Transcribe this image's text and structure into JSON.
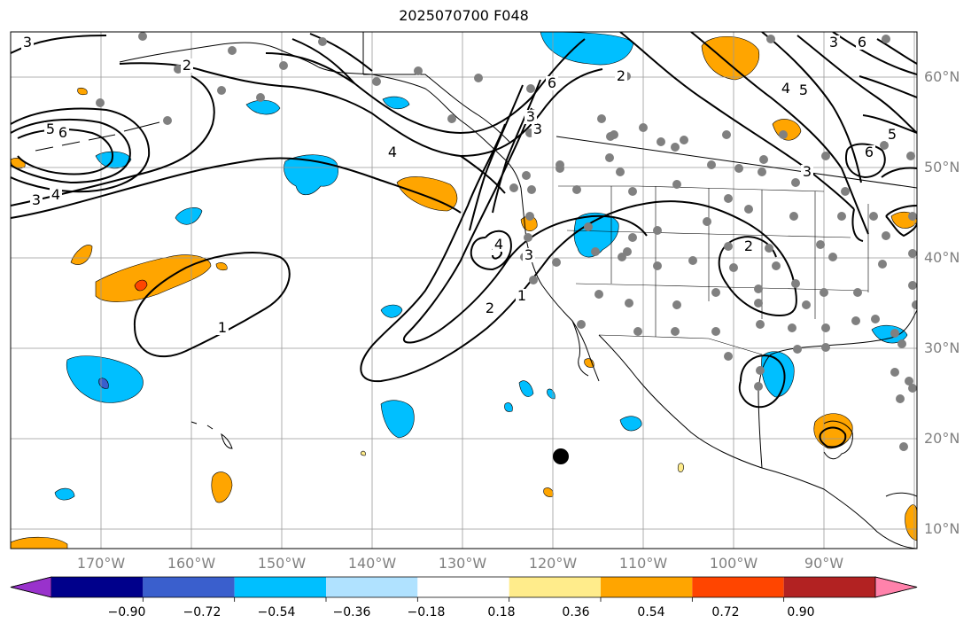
{
  "title": "2025070700 F048",
  "lon_labels": [
    "170°W",
    "160°W",
    "150°W",
    "140°W",
    "130°W",
    "120°W",
    "110°W",
    "100°W",
    "90°W"
  ],
  "lat_labels": [
    "60°N",
    "50°N",
    "40°N",
    "30°N",
    "20°N",
    "10°N"
  ],
  "contour_labels": [
    "3",
    "2",
    "6",
    "5",
    "6",
    "3",
    "4",
    "4",
    "6",
    "3",
    "2",
    "3",
    "4",
    "5",
    "3",
    "5",
    "6",
    "3",
    "4",
    "3",
    "2",
    "1",
    "2",
    "1"
  ],
  "colorbar": {
    "ticks": [
      "−0.90",
      "−0.72",
      "−0.54",
      "−0.36",
      "−0.18",
      "0.18",
      "0.36",
      "0.54",
      "0.72",
      "0.90"
    ],
    "colors": [
      "#9932cc",
      "#00008b",
      "#3a5fcd",
      "#00bfff",
      "#b0e2ff",
      "#ffffff",
      "#ffec8b",
      "#ffa500",
      "#ff4500",
      "#b22222",
      "#ff82ab"
    ]
  },
  "colors": {
    "negative_blue": "#00bfff",
    "negative_dark_blue": "#3a5fcd",
    "positive_orange": "#ffa500",
    "positive_red": "#ff4500",
    "positive_yellow": "#ffec8b",
    "station_marker": "#808080",
    "storm_marker": "#000000"
  }
}
